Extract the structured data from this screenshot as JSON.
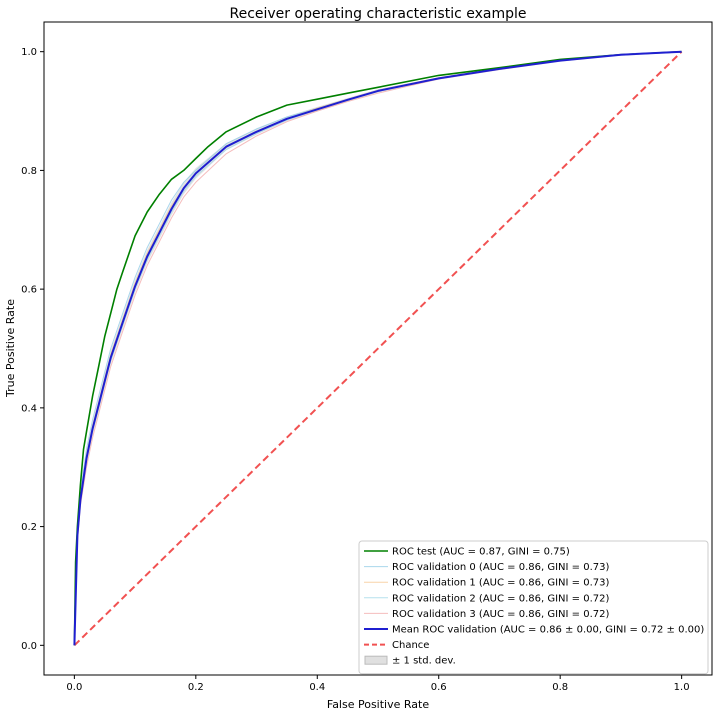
{
  "chart_data": {
    "type": "line",
    "title": "Receiver operating characteristic example",
    "xlabel": "False Positive Rate",
    "ylabel": "True Positive Rate",
    "xlim": [
      -0.05,
      1.05
    ],
    "ylim": [
      -0.05,
      1.05
    ],
    "xticks": [
      "0.0",
      "0.2",
      "0.4",
      "0.6",
      "0.8",
      "1.0"
    ],
    "yticks": [
      "0.0",
      "0.2",
      "0.4",
      "0.6",
      "0.8",
      "1.0"
    ],
    "grid": false,
    "legend_position": "lower-right",
    "series": [
      {
        "name": "ROC test (AUC = 0.87,  GINI = 0.75)",
        "color": "#008000",
        "style": "solid",
        "role": "test",
        "x": [
          0,
          0.002,
          0.005,
          0.01,
          0.015,
          0.02,
          0.03,
          0.04,
          0.05,
          0.06,
          0.07,
          0.08,
          0.1,
          0.12,
          0.14,
          0.16,
          0.18,
          0.2,
          0.22,
          0.25,
          0.3,
          0.35,
          0.4,
          0.45,
          0.5,
          0.6,
          0.7,
          0.8,
          0.9,
          1.0
        ],
        "y": [
          0,
          0.14,
          0.2,
          0.27,
          0.33,
          0.36,
          0.42,
          0.47,
          0.52,
          0.56,
          0.6,
          0.63,
          0.69,
          0.73,
          0.76,
          0.785,
          0.8,
          0.82,
          0.84,
          0.865,
          0.89,
          0.91,
          0.92,
          0.93,
          0.94,
          0.96,
          0.973,
          0.987,
          0.995,
          1.0
        ]
      },
      {
        "name": "ROC validation 0 (AUC = 0.86,  GINI = 0.73)",
        "color": "#8ec9e6",
        "style": "thin",
        "role": "fold",
        "x": [
          0,
          0.005,
          0.01,
          0.02,
          0.03,
          0.04,
          0.05,
          0.06,
          0.08,
          0.1,
          0.12,
          0.14,
          0.16,
          0.18,
          0.2,
          0.25,
          0.3,
          0.35,
          0.4,
          0.45,
          0.5,
          0.6,
          0.7,
          0.8,
          0.9,
          1.0
        ],
        "y": [
          0,
          0.2,
          0.26,
          0.33,
          0.38,
          0.42,
          0.46,
          0.5,
          0.56,
          0.62,
          0.67,
          0.71,
          0.75,
          0.78,
          0.8,
          0.845,
          0.87,
          0.89,
          0.905,
          0.92,
          0.935,
          0.955,
          0.972,
          0.985,
          0.995,
          1.0
        ]
      },
      {
        "name": "ROC validation 1 (AUC = 0.86,  GINI = 0.73)",
        "color": "#f5c58c",
        "style": "thin",
        "role": "fold",
        "x": [
          0,
          0.005,
          0.01,
          0.02,
          0.03,
          0.04,
          0.05,
          0.06,
          0.08,
          0.1,
          0.12,
          0.14,
          0.16,
          0.18,
          0.2,
          0.25,
          0.3,
          0.35,
          0.4,
          0.45,
          0.5,
          0.6,
          0.7,
          0.8,
          0.9,
          1.0
        ],
        "y": [
          0,
          0.19,
          0.25,
          0.32,
          0.37,
          0.41,
          0.45,
          0.49,
          0.55,
          0.61,
          0.66,
          0.7,
          0.74,
          0.77,
          0.795,
          0.84,
          0.865,
          0.887,
          0.905,
          0.92,
          0.935,
          0.956,
          0.972,
          0.986,
          0.995,
          1.0
        ]
      },
      {
        "name": "ROC validation 2 (AUC = 0.86,  GINI = 0.72)",
        "color": "#9fd7e8",
        "style": "thin",
        "role": "fold",
        "x": [
          0,
          0.005,
          0.01,
          0.02,
          0.03,
          0.04,
          0.05,
          0.06,
          0.08,
          0.1,
          0.12,
          0.14,
          0.16,
          0.18,
          0.2,
          0.25,
          0.3,
          0.35,
          0.4,
          0.45,
          0.5,
          0.6,
          0.7,
          0.8,
          0.9,
          1.0
        ],
        "y": [
          0,
          0.18,
          0.24,
          0.31,
          0.36,
          0.4,
          0.44,
          0.48,
          0.54,
          0.6,
          0.65,
          0.69,
          0.73,
          0.765,
          0.79,
          0.835,
          0.862,
          0.885,
          0.902,
          0.918,
          0.933,
          0.955,
          0.971,
          0.985,
          0.995,
          1.0
        ]
      },
      {
        "name": "ROC validation 3 (AUC = 0.86,  GINI = 0.72)",
        "color": "#f2a7a7",
        "style": "thin",
        "role": "fold",
        "x": [
          0,
          0.005,
          0.01,
          0.02,
          0.03,
          0.04,
          0.05,
          0.06,
          0.08,
          0.1,
          0.12,
          0.14,
          0.16,
          0.18,
          0.2,
          0.25,
          0.3,
          0.35,
          0.4,
          0.45,
          0.5,
          0.6,
          0.7,
          0.8,
          0.9,
          1.0
        ],
        "y": [
          0,
          0.175,
          0.235,
          0.3,
          0.35,
          0.39,
          0.43,
          0.47,
          0.53,
          0.59,
          0.64,
          0.68,
          0.72,
          0.755,
          0.78,
          0.828,
          0.858,
          0.882,
          0.9,
          0.916,
          0.93,
          0.954,
          0.97,
          0.985,
          0.995,
          1.0
        ]
      },
      {
        "name": "Mean ROC validation (AUC = 0.86 ± 0.00, GINI = 0.72 ± 0.00)",
        "color": "#1f1fd0",
        "style": "solid",
        "role": "mean",
        "x": [
          0,
          0.005,
          0.01,
          0.02,
          0.03,
          0.04,
          0.05,
          0.06,
          0.08,
          0.1,
          0.12,
          0.14,
          0.16,
          0.18,
          0.2,
          0.25,
          0.3,
          0.35,
          0.4,
          0.45,
          0.5,
          0.6,
          0.7,
          0.8,
          0.9,
          1.0
        ],
        "y": [
          0,
          0.185,
          0.245,
          0.315,
          0.365,
          0.405,
          0.445,
          0.485,
          0.545,
          0.605,
          0.655,
          0.695,
          0.735,
          0.77,
          0.795,
          0.84,
          0.865,
          0.887,
          0.903,
          0.919,
          0.934,
          0.955,
          0.971,
          0.985,
          0.995,
          1.0
        ]
      },
      {
        "name": "Chance",
        "color": "#ee3333",
        "style": "dashed",
        "role": "chance",
        "x": [
          0,
          1
        ],
        "y": [
          0,
          1
        ]
      }
    ],
    "band": {
      "name": "± 1 std. dev.",
      "color": "#cccccc",
      "x": [
        0,
        0.005,
        0.01,
        0.02,
        0.03,
        0.04,
        0.05,
        0.06,
        0.08,
        0.1,
        0.12,
        0.14,
        0.16,
        0.18,
        0.2,
        0.25,
        0.3,
        0.35,
        0.4,
        0.45,
        0.5,
        0.6,
        0.7,
        0.8,
        0.9,
        1.0
      ],
      "upper": [
        0,
        0.195,
        0.256,
        0.326,
        0.376,
        0.416,
        0.456,
        0.496,
        0.556,
        0.616,
        0.666,
        0.706,
        0.746,
        0.78,
        0.804,
        0.846,
        0.87,
        0.891,
        0.907,
        0.922,
        0.937,
        0.957,
        0.973,
        0.987,
        0.996,
        1.0
      ],
      "lower": [
        0,
        0.175,
        0.234,
        0.304,
        0.354,
        0.394,
        0.434,
        0.474,
        0.534,
        0.594,
        0.644,
        0.684,
        0.724,
        0.76,
        0.786,
        0.834,
        0.86,
        0.883,
        0.899,
        0.916,
        0.931,
        0.953,
        0.969,
        0.983,
        0.994,
        1.0
      ]
    }
  }
}
